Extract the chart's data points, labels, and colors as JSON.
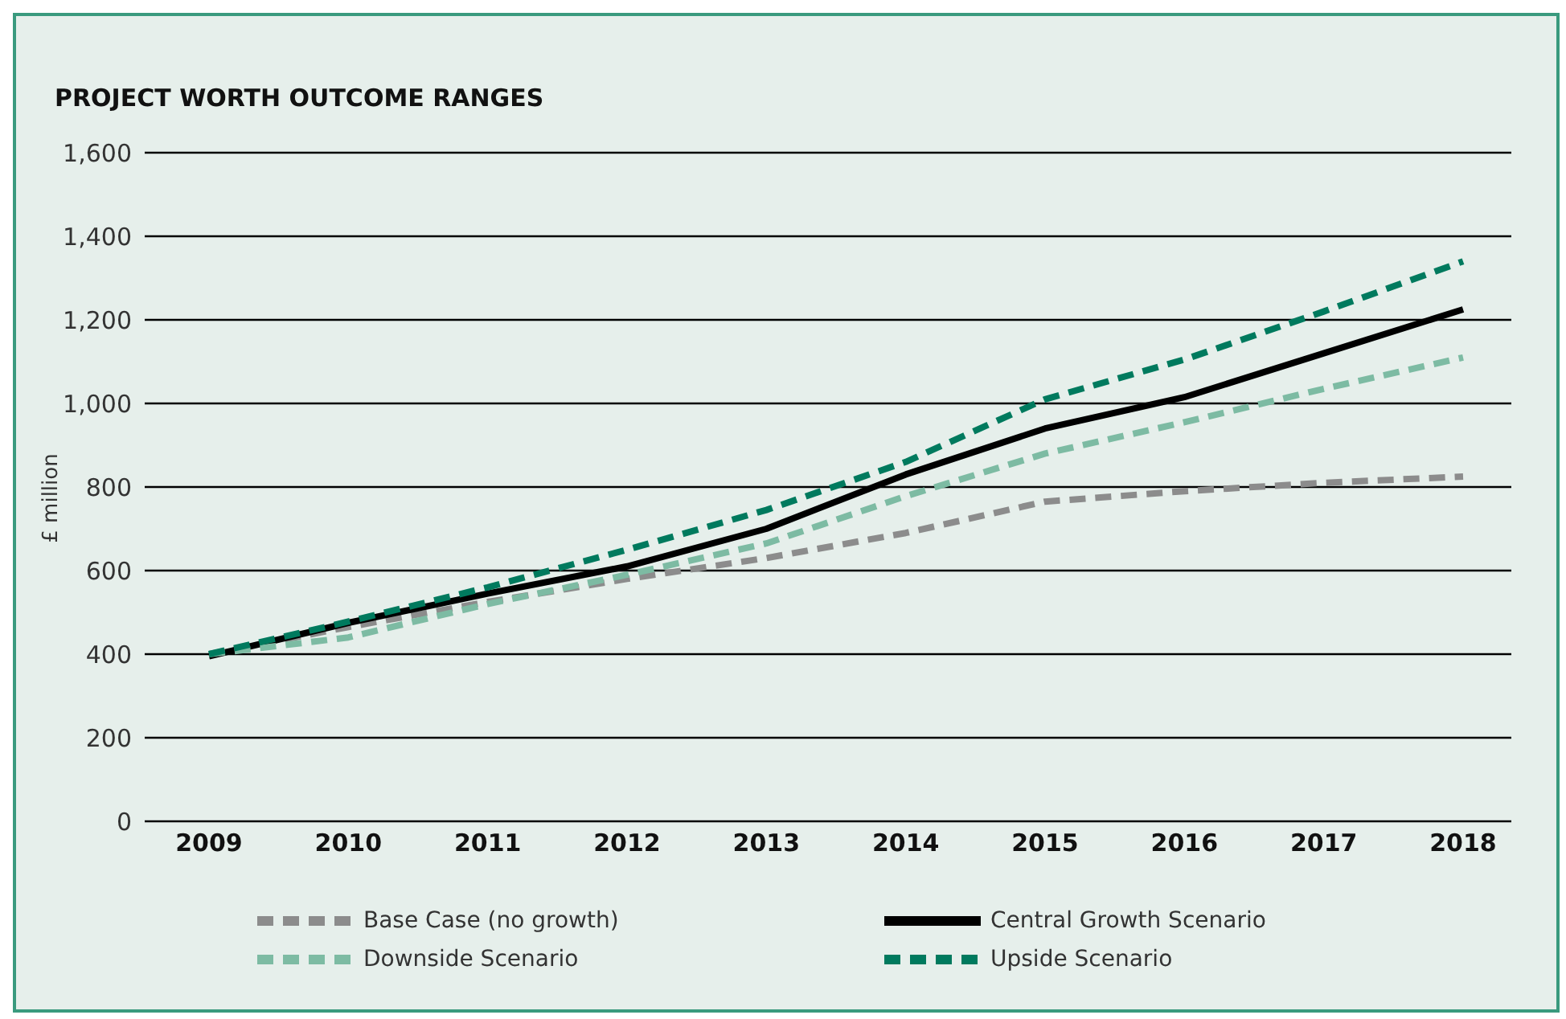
{
  "chart_data": {
    "type": "line",
    "title": "PROJECT WORTH OUTCOME RANGES",
    "ylabel": "£ million",
    "categories": [
      "2009",
      "2010",
      "2011",
      "2012",
      "2013",
      "2014",
      "2015",
      "2016",
      "2017",
      "2018"
    ],
    "series": [
      {
        "name": "Base Case (no growth)",
        "color": "#8c8c8c",
        "line_style": "dashed",
        "values": [
          400,
          465,
          525,
          580,
          630,
          690,
          765,
          790,
          810,
          825
        ]
      },
      {
        "name": "Central Growth Scenario",
        "color": "#000000",
        "line_style": "solid",
        "values": [
          395,
          475,
          545,
          610,
          700,
          830,
          940,
          1015,
          1120,
          1225
        ]
      },
      {
        "name": "Downside Scenario",
        "color": "#7dbba3",
        "line_style": "dashed",
        "values": [
          400,
          440,
          520,
          590,
          665,
          778,
          880,
          955,
          1035,
          1110
        ]
      },
      {
        "name": "Upside Scenario",
        "color": "#007a5e",
        "line_style": "dashed",
        "values": [
          400,
          478,
          560,
          650,
          745,
          860,
          1010,
          1105,
          1220,
          1340
        ]
      }
    ],
    "ylim": [
      0,
      1600
    ],
    "yticks": [
      0,
      200,
      400,
      600,
      800,
      {
        "value": 1000,
        "label": "1,000"
      },
      {
        "value": 1200,
        "label": "1,200"
      },
      {
        "value": 1400,
        "label": "1,400"
      },
      {
        "value": 1600,
        "label": "1,600"
      }
    ],
    "grid": "y",
    "legend": "bottom",
    "marker": "none"
  }
}
